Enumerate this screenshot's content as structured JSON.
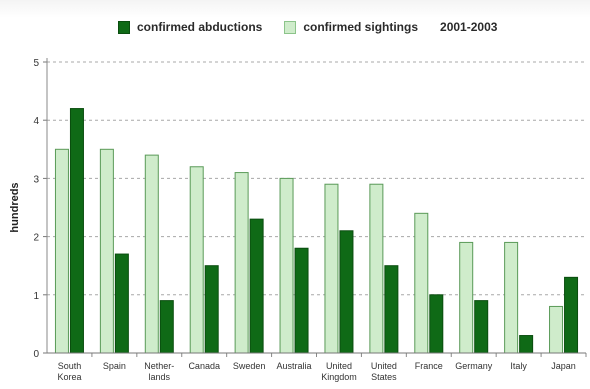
{
  "chart_data": {
    "type": "bar",
    "title": "",
    "period": "2001-2003",
    "xlabel": "",
    "ylabel": "hundreds",
    "ylim": [
      0,
      5
    ],
    "yticks": [
      0,
      1,
      2,
      3,
      4,
      5
    ],
    "grid": "horizontal-dashed",
    "legend_position": "top",
    "categories": [
      [
        "South",
        "Korea"
      ],
      [
        "Spain"
      ],
      [
        "Nether-",
        "lands"
      ],
      [
        "Canada"
      ],
      [
        "Sweden"
      ],
      [
        "Australia"
      ],
      [
        "United",
        "Kingdom"
      ],
      [
        "United",
        "States"
      ],
      [
        "France"
      ],
      [
        "Germany"
      ],
      [
        "Italy"
      ],
      [
        "Japan"
      ]
    ],
    "series": [
      {
        "name": "confirmed sightings",
        "color": "#cfeccb",
        "stroke": "#5a9a58",
        "values": [
          3.5,
          3.5,
          3.4,
          3.2,
          3.1,
          3.0,
          2.9,
          2.9,
          2.4,
          1.9,
          1.9,
          0.8
        ]
      },
      {
        "name": "confirmed abductions",
        "color": "#0f6a16",
        "stroke": "#0a4d0f",
        "values": [
          4.2,
          1.7,
          0.9,
          1.5,
          2.3,
          1.8,
          2.1,
          1.5,
          1.0,
          0.9,
          0.3,
          1.3
        ]
      }
    ]
  }
}
